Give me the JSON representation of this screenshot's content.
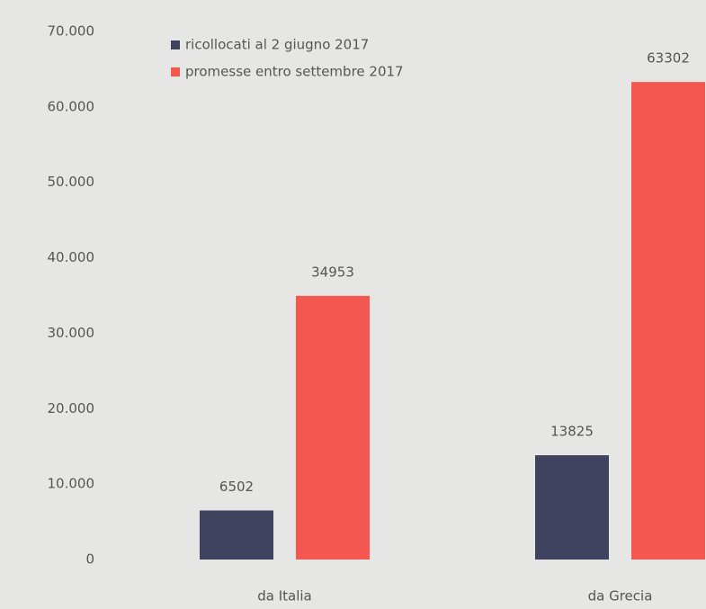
{
  "chart_data": {
    "type": "bar",
    "categories": [
      "da Italia",
      "da Grecia"
    ],
    "series": [
      {
        "name": "ricollocati al 2 giugno 2017",
        "color": "#3f4360",
        "values": [
          6502,
          13825
        ]
      },
      {
        "name": "promesse entro settembre 2017",
        "color": "#f4574f",
        "values": [
          34953,
          63302
        ]
      }
    ],
    "ylim": [
      0,
      70000
    ],
    "yticks": [
      {
        "value": 0,
        "label": "0"
      },
      {
        "value": 10000,
        "label": "10.000"
      },
      {
        "value": 20000,
        "label": "20.000"
      },
      {
        "value": 30000,
        "label": "30.000"
      },
      {
        "value": 40000,
        "label": "40.000"
      },
      {
        "value": 50000,
        "label": "50.000"
      },
      {
        "value": 60000,
        "label": "60.000"
      },
      {
        "value": 70000,
        "label": "70.000"
      }
    ],
    "grid": false,
    "legend": "top-left"
  }
}
